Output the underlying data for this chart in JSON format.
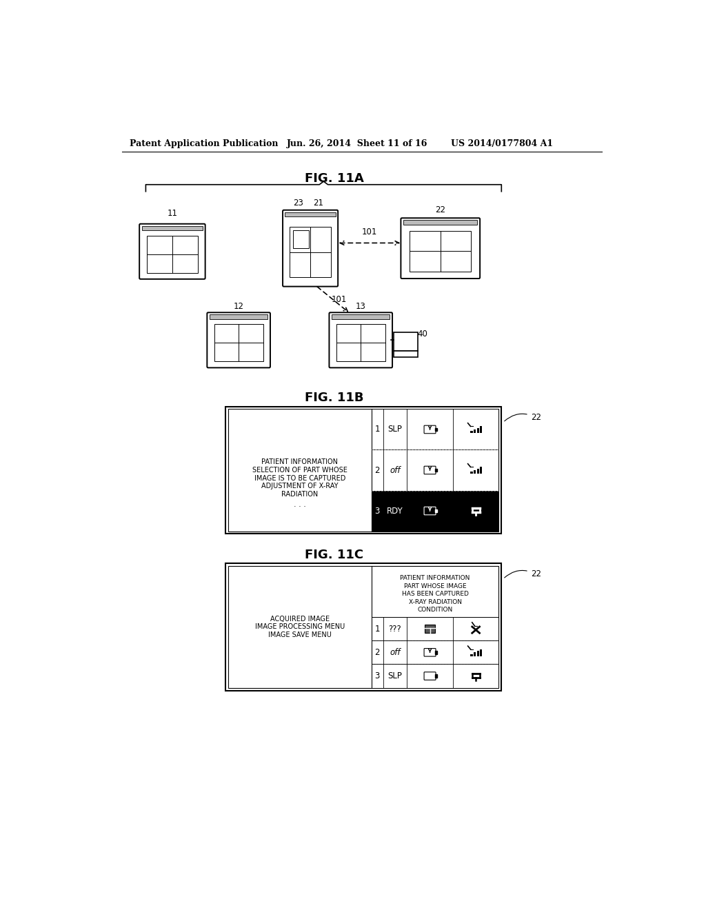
{
  "header_left": "Patent Application Publication",
  "header_mid": "Jun. 26, 2014  Sheet 11 of 16",
  "header_right": "US 2014/0177804 A1",
  "fig11a_title": "FIG. 11A",
  "fig11b_title": "FIG. 11B",
  "fig11c_title": "FIG. 11C",
  "bg_color": "#ffffff",
  "line_color": "#000000"
}
